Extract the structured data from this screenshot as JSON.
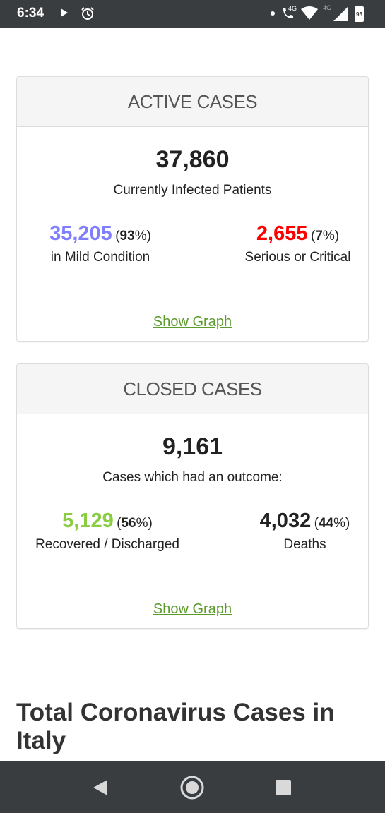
{
  "status_bar": {
    "time": "6:34",
    "network_label": "4G",
    "signal_label": "4G",
    "battery_level": "95",
    "icons": [
      "play-icon",
      "alarm-icon",
      "phone-4g-icon",
      "wifi-icon",
      "signal-icon",
      "battery-icon"
    ]
  },
  "active_cases": {
    "header": "ACTIVE CASES",
    "total": "37,860",
    "caption": "Currently Infected Patients",
    "mild": {
      "value": "35,205",
      "pct_open": "(",
      "pct": "93",
      "pct_close": "%)",
      "label": "in Mild Condition",
      "color": "#8080ff"
    },
    "serious": {
      "value": "2,655",
      "pct_open": "(",
      "pct": "7",
      "pct_close": "%)",
      "label": "Serious or Critical",
      "color": "#ff0000"
    },
    "show_graph": "Show Graph"
  },
  "closed_cases": {
    "header": "CLOSED CASES",
    "total": "9,161",
    "caption": "Cases which had an outcome:",
    "recovered": {
      "value": "5,129",
      "pct_open": "(",
      "pct": "56",
      "pct_close": "%)",
      "label": "Recovered / Discharged",
      "color": "#8acd43"
    },
    "deaths": {
      "value": "4,032",
      "pct_open": "(",
      "pct": "44",
      "pct_close": "%)",
      "label": "Deaths",
      "color": "#222222"
    },
    "show_graph": "Show Graph"
  },
  "section_title": "Total Coronavirus Cases in Italy",
  "nav_bar": {
    "icons": [
      "back-icon",
      "home-icon",
      "recent-apps-icon"
    ]
  },
  "colors": {
    "link": "#5b9a2b",
    "status_bar_bg": "#3a3d40"
  }
}
